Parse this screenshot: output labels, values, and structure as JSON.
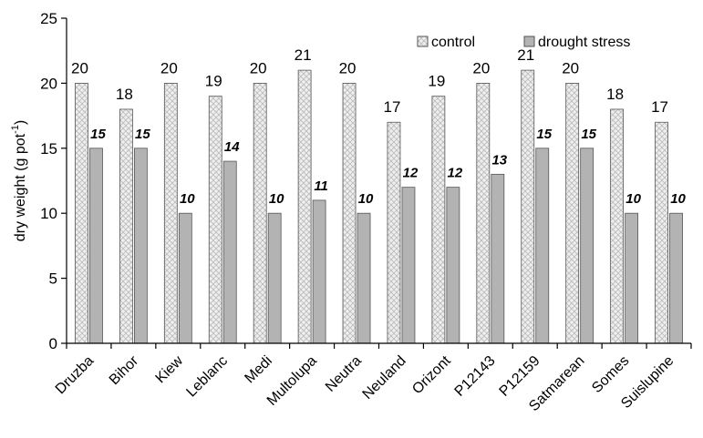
{
  "chart_data": {
    "type": "bar",
    "categories": [
      "Druzba",
      "Bihor",
      "Kiew",
      "Leblanc",
      "Medi",
      "Multolupa",
      "Neutra",
      "Neuland",
      "Orizont",
      "P12143",
      "P12159",
      "Satmarean",
      "Somes",
      "Suislupine"
    ],
    "series": [
      {
        "name": "control",
        "values": [
          20,
          18,
          20,
          19,
          20,
          21,
          20,
          17,
          19,
          20,
          21,
          20,
          18,
          17
        ],
        "labels": [
          "20",
          "18",
          "20",
          "19",
          "20",
          "21",
          "20",
          "17",
          "19",
          "20",
          "21",
          "20",
          "18",
          "17"
        ]
      },
      {
        "name": "drought stress",
        "values": [
          15,
          15,
          10,
          14,
          10,
          11,
          10,
          12,
          12,
          13,
          15,
          15,
          10,
          10
        ],
        "labels": [
          "15",
          "15",
          "10",
          "14",
          "10",
          "11",
          "10",
          "12",
          "12",
          "13",
          "15",
          "15",
          "10",
          "10"
        ]
      }
    ],
    "ylabel": "dry weight (g pot",
    "ylabel_sup": "-1",
    "ylabel_close": ")",
    "ylim": [
      0,
      25
    ],
    "yticks": [
      "0",
      "5",
      "10",
      "15",
      "20",
      "25"
    ],
    "legend_position": "top-right",
    "grid": false,
    "colors": {
      "control_fill": "#eeeeee",
      "control_hatch": "#bbbbbb",
      "stress_fill": "#b3b3b3",
      "bar_stroke": "#555555"
    }
  }
}
